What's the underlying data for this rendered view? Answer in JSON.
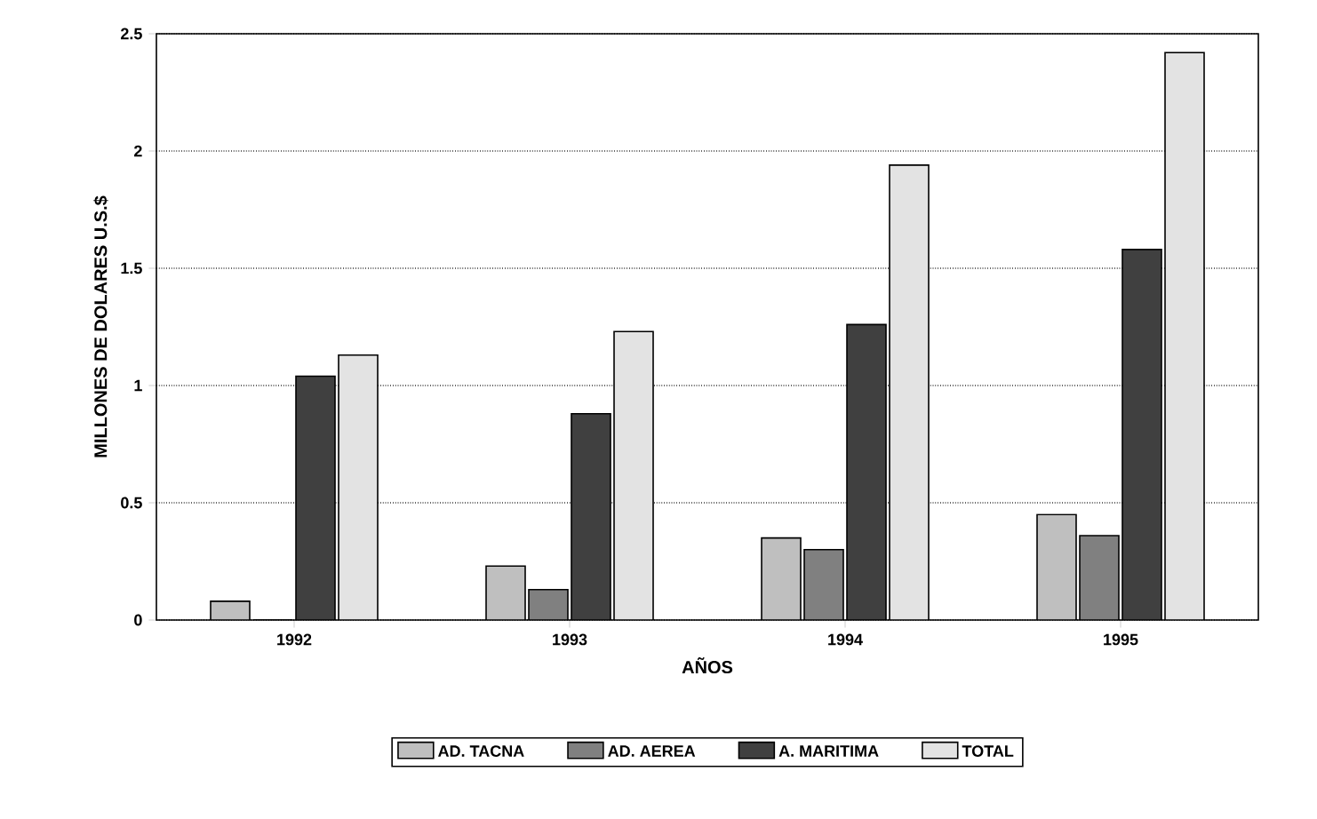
{
  "chart_data": {
    "type": "bar",
    "xlabel": "AÑOS",
    "ylabel": "MILLONES DE DOLARES U.S.$",
    "categories": [
      "1992",
      "1993",
      "1994",
      "1995"
    ],
    "series": [
      {
        "name": "AD. TACNA",
        "color": "#bfbfbf",
        "values": [
          0.08,
          0.23,
          0.35,
          0.45
        ]
      },
      {
        "name": "AD. AEREA",
        "color": "#808080",
        "values": [
          0,
          0.13,
          0.3,
          0.36
        ]
      },
      {
        "name": "A. MARITIMA",
        "color": "#404040",
        "values": [
          1.04,
          0.88,
          1.26,
          1.58
        ]
      },
      {
        "name": "TOTAL",
        "color": "#e3e3e3",
        "values": [
          1.13,
          1.23,
          1.94,
          2.42
        ]
      }
    ],
    "ylim": [
      0,
      2.5
    ],
    "yticks": [
      0,
      0.5,
      1,
      1.5,
      2,
      2.5
    ],
    "grid": "y",
    "legend": "bottom"
  }
}
